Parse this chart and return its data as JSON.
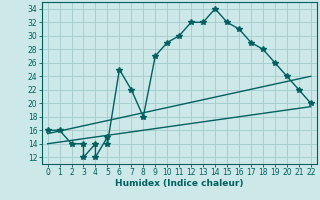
{
  "xlabel": "Humidex (Indice chaleur)",
  "bg_color": "#cce8e8",
  "grid_color": "#a8d0d0",
  "line_color": "#006060",
  "xlim": [
    0,
    22
  ],
  "ylim": [
    11,
    35
  ],
  "xticks": [
    0,
    1,
    2,
    3,
    4,
    5,
    6,
    7,
    8,
    9,
    10,
    11,
    12,
    13,
    14,
    15,
    16,
    17,
    18,
    19,
    20,
    21,
    22
  ],
  "yticks": [
    12,
    14,
    16,
    18,
    20,
    22,
    24,
    26,
    28,
    30,
    32,
    34
  ],
  "main_x": [
    0,
    1,
    2,
    3,
    3,
    4,
    4,
    5,
    5,
    6,
    7,
    8,
    9,
    10,
    11,
    12,
    13,
    14,
    15,
    16,
    17,
    18,
    19,
    20,
    21,
    22
  ],
  "main_y": [
    16,
    16,
    14,
    14,
    12,
    14,
    12,
    15,
    14,
    25,
    22,
    18,
    27,
    29,
    30,
    32,
    32,
    34,
    32,
    31,
    29,
    28,
    26,
    24,
    22,
    20
  ],
  "line1_x": [
    0,
    22
  ],
  "line1_y": [
    15.5,
    24
  ],
  "line2_x": [
    0,
    22
  ],
  "line2_y": [
    14,
    19.5
  ],
  "marker_size": 4,
  "linewidth": 1.0,
  "xlabel_fontsize": 6.5,
  "tick_fontsize": 5.5
}
